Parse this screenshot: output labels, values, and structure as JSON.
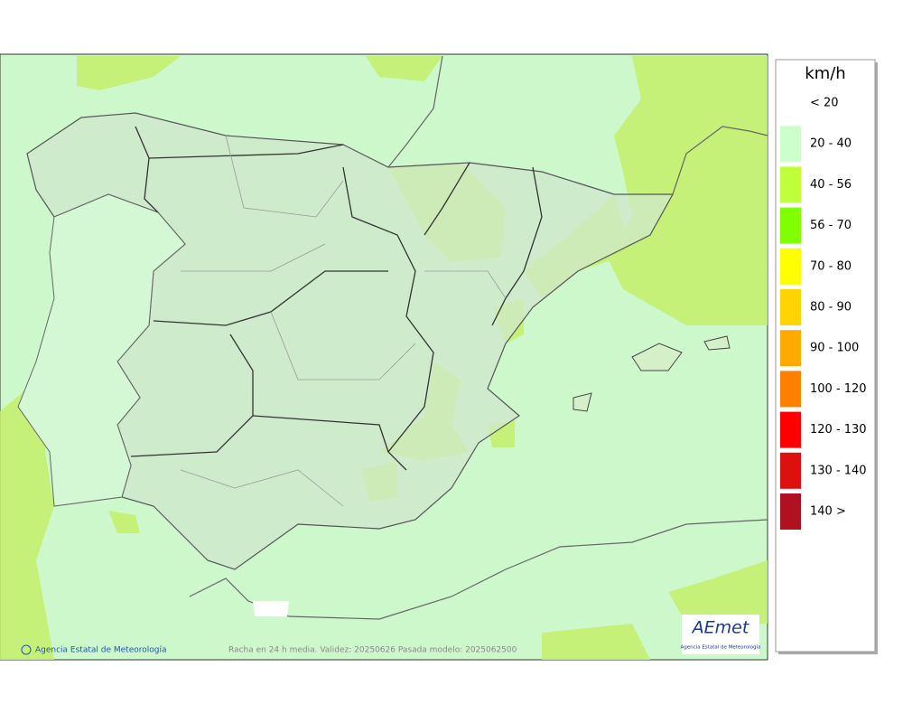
{
  "legend": {
    "title": "km/h",
    "items": [
      {
        "label": "< 20",
        "color": "#ffffff"
      },
      {
        "label": "20 - 40",
        "color": "#ccffcc"
      },
      {
        "label": "40 - 56",
        "color": "#c0ff3c"
      },
      {
        "label": "56 - 70",
        "color": "#80ff00"
      },
      {
        "label": "70 - 80",
        "color": "#ffff00"
      },
      {
        "label": "80 - 90",
        "color": "#ffd400"
      },
      {
        "label": "90 - 100",
        "color": "#ffaa00"
      },
      {
        "label": "100 - 120",
        "color": "#ff8000"
      },
      {
        "label": "120 - 130",
        "color": "#ff0000"
      },
      {
        "label": "130 - 140",
        "color": "#dd1010"
      },
      {
        "label": "140 >",
        "color": "#b01020"
      }
    ]
  },
  "footer": {
    "credit": "Agencia Estatal de Meteorología",
    "caption": "Racha en 24 h media. Validez: 20250626 Pasada modelo: 2025062500"
  },
  "logo": {
    "name": "AEmet",
    "subtitle": "Agencia Estatal de Meteorología"
  }
}
